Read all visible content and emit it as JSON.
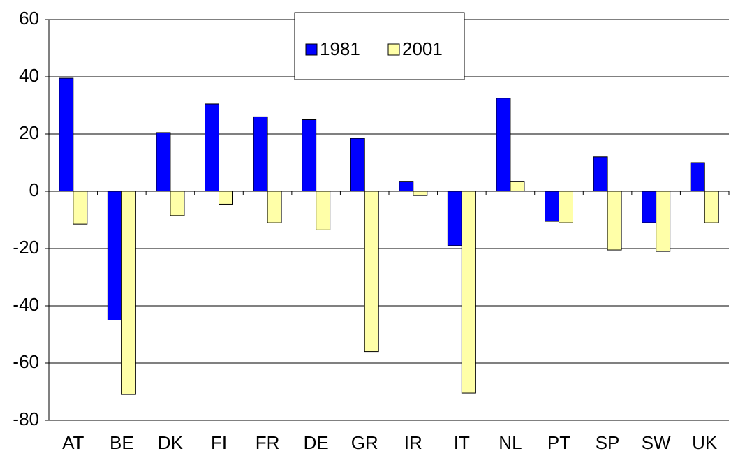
{
  "chart_data": {
    "type": "bar",
    "categories": [
      "AT",
      "BE",
      "DK",
      "FI",
      "FR",
      "DE",
      "GR",
      "IR",
      "IT",
      "NL",
      "PT",
      "SP",
      "SW",
      "UK"
    ],
    "series": [
      {
        "name": "1981",
        "color": "#0000ff",
        "values": [
          39.5,
          -45,
          20.5,
          30.5,
          26,
          25,
          18.5,
          3.5,
          -19,
          32.5,
          -10.5,
          12,
          -11,
          10
        ]
      },
      {
        "name": "2001",
        "color": "#ffffa8",
        "values": [
          -11.5,
          -71,
          -8.5,
          -4.5,
          -11,
          -13.5,
          -56,
          -1.5,
          -70.5,
          3.5,
          -11,
          -20.5,
          -21,
          -11
        ]
      }
    ],
    "ylim": [
      -80,
      60
    ],
    "yticks": [
      -80,
      -60,
      -40,
      -20,
      0,
      20,
      40,
      60
    ],
    "grid": true,
    "legend": "top"
  }
}
